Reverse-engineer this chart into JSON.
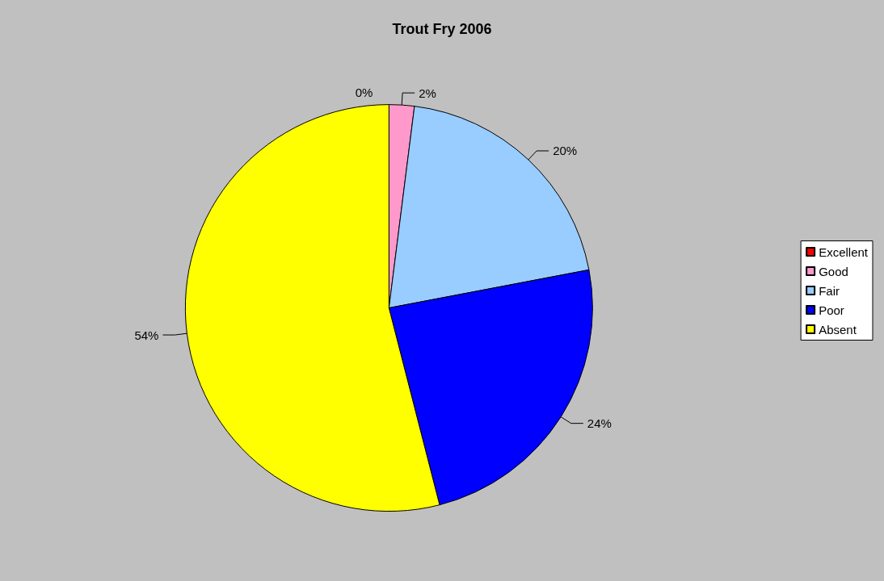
{
  "chart_data": {
    "type": "pie",
    "title": "Trout Fry 2006",
    "categories": [
      "Excellent",
      "Good",
      "Fair",
      "Poor",
      "Absent"
    ],
    "values": [
      0,
      2,
      20,
      24,
      54
    ],
    "value_labels": [
      "0%",
      "2%",
      "20%",
      "24%",
      "54%"
    ],
    "colors": [
      "#ff0000",
      "#ff99cc",
      "#99ccff",
      "#0000ff",
      "#ffff00"
    ],
    "legend": "right"
  }
}
